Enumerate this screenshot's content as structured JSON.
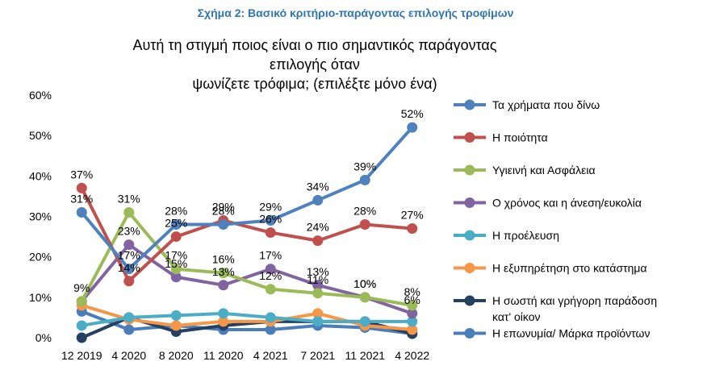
{
  "caption": "Σχήμα 2: Βασικό κριτήριο-παράγοντας επιλογής τροφίμων",
  "chart_data": {
    "type": "line",
    "title_lines": [
      "Αυτή τη στιγμή ποιος είναι ο πιο σημαντικός παράγοντας επιλογής όταν",
      "ψωνίζετε τρόφιμα; (επιλέξτε μόνο ένα)"
    ],
    "categories": [
      "12 2019",
      "4 2020",
      "8 2020",
      "11 2020",
      "4 2021",
      "7 2021",
      "11 2021",
      "4 2022"
    ],
    "ylim": [
      0,
      60
    ],
    "yticks": [
      "0%",
      "10%",
      "20%",
      "30%",
      "40%",
      "50%",
      "60%"
    ],
    "grid": false,
    "legend_position": "right",
    "series": [
      {
        "name": "Τα χρήματα που δίνω",
        "color": "#4f81bd",
        "values": [
          31,
          17,
          28,
          28,
          29,
          34,
          39,
          52
        ],
        "labels": [
          "31%",
          "17%",
          "28%",
          "28%",
          "29%",
          "34%",
          "39%",
          "52%"
        ]
      },
      {
        "name": "Η ποιότητα",
        "color": "#c0504d",
        "values": [
          37,
          14,
          25,
          29,
          26,
          24,
          28,
          27
        ],
        "labels": [
          "37%",
          "14%",
          "25%",
          "29%",
          "26%",
          "24%",
          "28%",
          "27%"
        ]
      },
      {
        "name": "Υγιεινή και Ασφάλεια",
        "color": "#9bbb59",
        "values": [
          9,
          31,
          17,
          16,
          12,
          11,
          10,
          8
        ],
        "labels": [
          "9%",
          "31%",
          "17%",
          "16%",
          "12%",
          "11%",
          "10%",
          "8%"
        ]
      },
      {
        "name": "Ο χρόνος και η άνεση/ευκολία",
        "color": "#8064a2",
        "values": [
          9,
          23,
          15,
          13,
          17,
          13,
          10,
          6
        ],
        "labels": [
          "",
          "23%",
          "15%",
          "13%",
          "17%",
          "13%",
          "10%",
          "6%"
        ]
      },
      {
        "name": "Η προέλευση",
        "color": "#4bacc6",
        "values": [
          3,
          5,
          5.5,
          6,
          5,
          4,
          4,
          4
        ],
        "labels": [
          "",
          "",
          "",
          "",
          "",
          "",
          "",
          ""
        ]
      },
      {
        "name": "Η εξυπηρέτηση στο κατάστημα",
        "color": "#f79646",
        "values": [
          8,
          4.5,
          3,
          4,
          4,
          6,
          3,
          2
        ],
        "labels": [
          "",
          "",
          "",
          "",
          "",
          "",
          "",
          ""
        ]
      },
      {
        "name": "Η σωστή και γρήγορη παράδοση κατ' οίκον",
        "color": "#254061",
        "values": [
          0,
          5,
          1.5,
          3,
          4,
          4,
          4,
          1
        ],
        "labels": [
          "",
          "",
          "",
          "",
          "",
          "",
          "",
          ""
        ]
      },
      {
        "name": "Η επωνυμία/ Μάρκα προϊόντων",
        "color": "#4a7ebb",
        "values": [
          6.5,
          2,
          3,
          2,
          2,
          3,
          2.5,
          1
        ],
        "labels": [
          "",
          "",
          "",
          "",
          "",
          "",
          "",
          ""
        ]
      }
    ]
  }
}
